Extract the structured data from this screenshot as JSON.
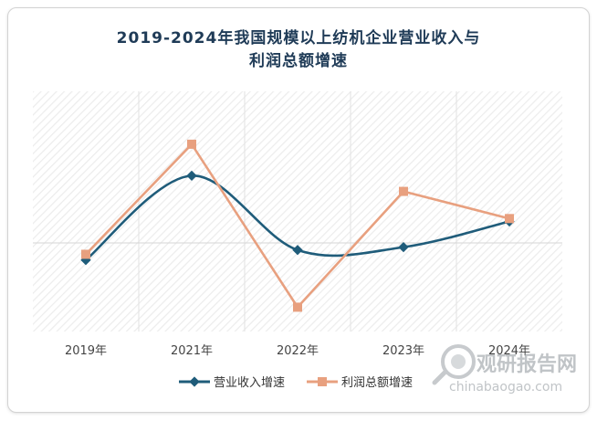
{
  "chart_data": {
    "type": "line",
    "title_line1": "2019-2024年我国规模以上纺机企业营业收入与",
    "title_line2": "利润总额增速",
    "categories": [
      "2019年",
      "2021年",
      "2022年",
      "2023年",
      "2024年"
    ],
    "series": [
      {
        "name": "营业收入增速",
        "values": [
          -6,
          23.5,
          -2.5,
          -1.5,
          7.5
        ],
        "color": "#1f5c7a",
        "marker": "diamond",
        "smooth": true
      },
      {
        "name": "利润总额增速",
        "values": [
          -4,
          34.5,
          -22.5,
          18,
          8.5
        ],
        "color": "#e8a07f",
        "marker": "square",
        "smooth": false
      }
    ],
    "ylim": [
      -31,
      53
    ],
    "grid": true,
    "legend": "bottom"
  },
  "watermark": {
    "cn": "观研报告网",
    "url": "chinabaogao.com"
  }
}
